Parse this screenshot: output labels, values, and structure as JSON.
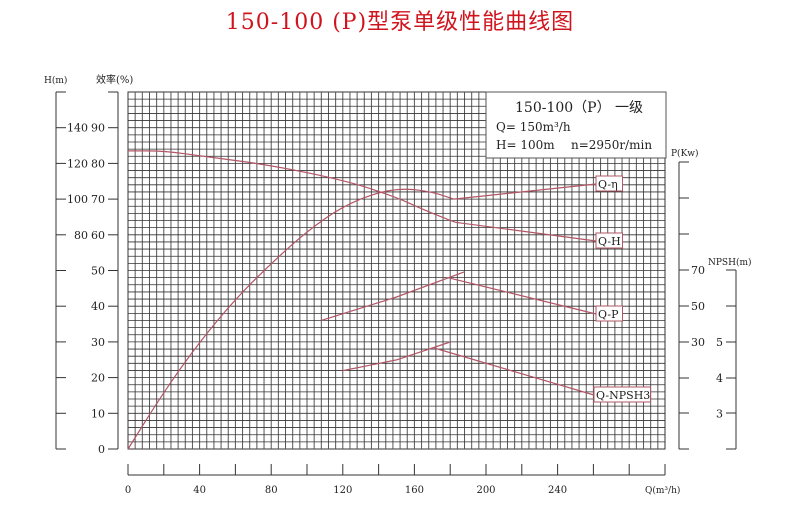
{
  "title": "150-100 (P)型泵单级性能曲线图",
  "info_box": {
    "model": "150-100（P） 一级",
    "flow": "Q= 150m³/h",
    "head": "H= 100m",
    "speed": "n=2950r/min"
  },
  "chart_data": {
    "type": "line",
    "grid": true,
    "colors": {
      "curves": "#b25566",
      "title": "#d0141e",
      "grid": "#333333"
    },
    "x_axis": {
      "label": "Q(m³/h)",
      "range": [
        0,
        300
      ],
      "tick_labels": [
        "0",
        "40",
        "80",
        "120",
        "160",
        "200",
        "240"
      ],
      "minor_step": 20
    },
    "axes": {
      "head": {
        "label": "H(m)",
        "tick_labels": [
          "140",
          "120",
          "100",
          "80"
        ]
      },
      "efficiency": {
        "label": "效率(%)",
        "range": [
          0,
          100
        ],
        "tick_labels": [
          "90",
          "80",
          "70",
          "60",
          "50",
          "40",
          "30",
          "20",
          "10",
          "0"
        ]
      },
      "power": {
        "label": "P(Kw)",
        "tick_labels": [
          "70",
          "50",
          "30"
        ]
      },
      "npsh": {
        "label": "NPSH(m)",
        "tick_labels": [
          "5",
          "4",
          "3"
        ]
      }
    },
    "series": [
      {
        "name": "Q-η",
        "axis": "efficiency",
        "x": [
          0,
          20,
          40,
          60,
          80,
          100,
          120,
          140,
          155,
          170,
          182
        ],
        "y": [
          0,
          16,
          30,
          42,
          52,
          61,
          68,
          72,
          73,
          72,
          70
        ]
      },
      {
        "name": "Q-H",
        "axis": "head",
        "x": [
          0,
          20,
          42,
          80,
          123,
          150,
          163,
          175,
          183
        ],
        "y": [
          127,
          127,
          124,
          119,
          110,
          101,
          95,
          90,
          87
        ]
      },
      {
        "name": "Q-P",
        "axis": "power",
        "x": [
          108,
          150,
          188
        ],
        "y": [
          42,
          55,
          69
        ]
      },
      {
        "name": "Q-NPSH3",
        "axis": "npsh",
        "x": [
          120,
          150,
          180
        ],
        "y": [
          4.2,
          4.5,
          5.0
        ]
      }
    ]
  }
}
